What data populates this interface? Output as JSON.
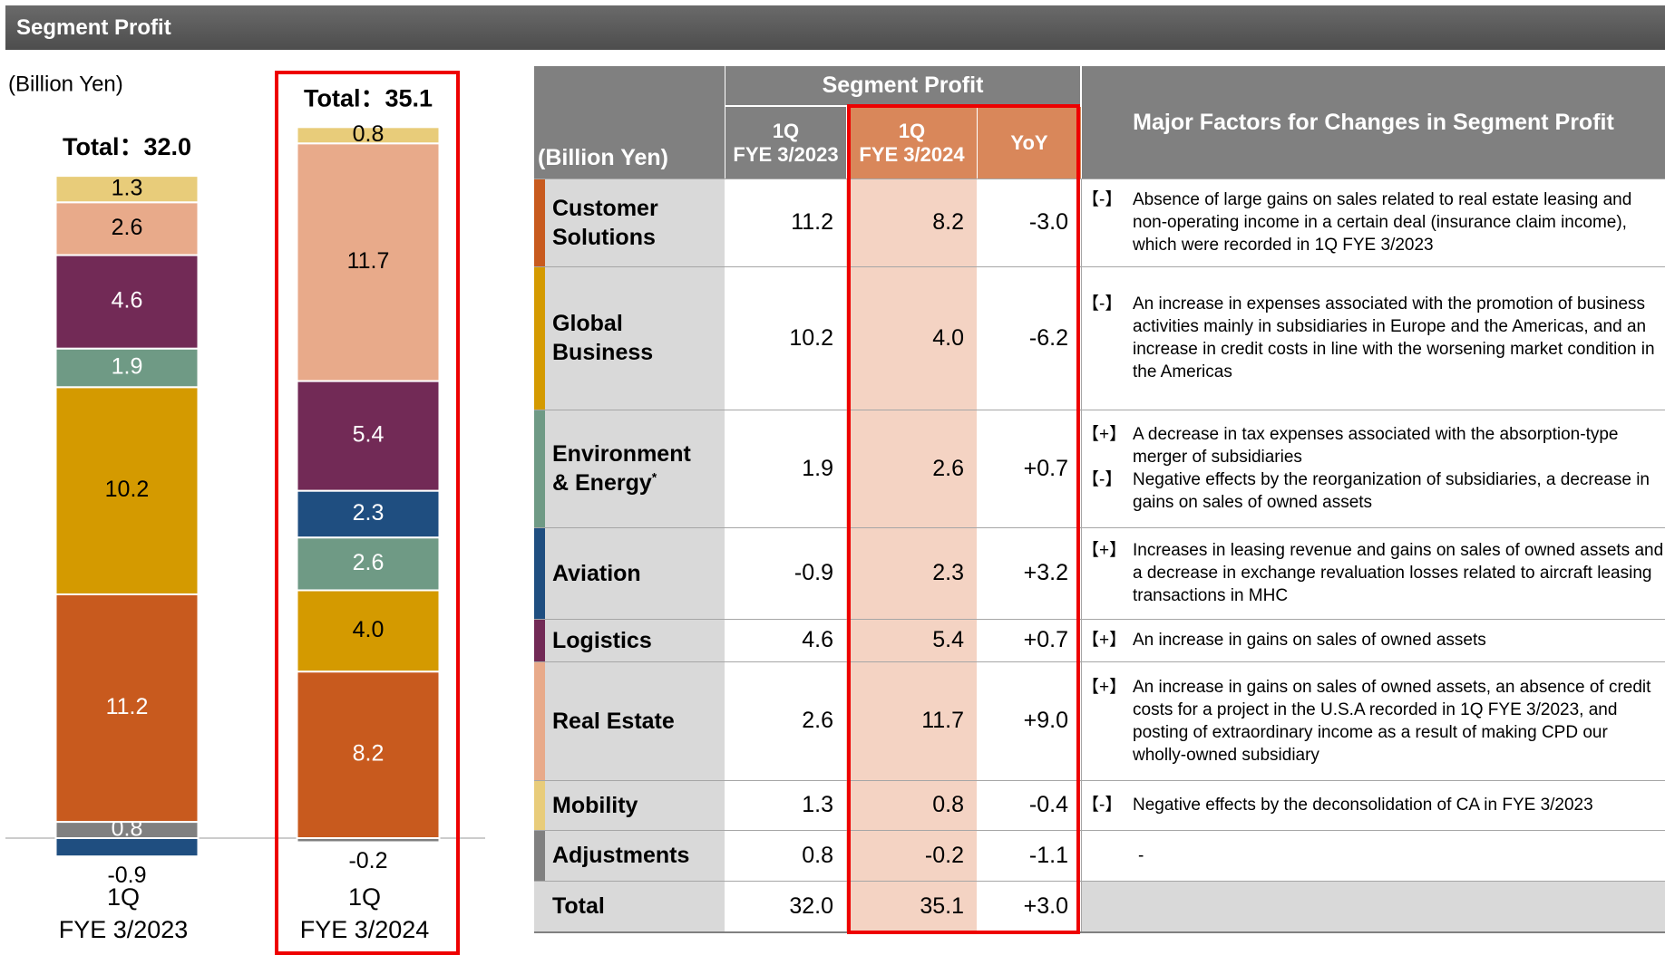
{
  "header": {
    "title": "Segment Profit"
  },
  "chart_data": {
    "type": "stacked_bar",
    "unit_label": "(Billion Yen)",
    "total_label": "Total：",
    "totals": [
      32.0,
      35.1
    ],
    "totals_labels": [
      "32.0",
      "35.1"
    ],
    "categories": [
      [
        "1Q",
        "FYE 3/2023"
      ],
      [
        "1Q",
        "FYE 3/2024"
      ]
    ],
    "series": [
      {
        "color": "#808080",
        "values": [
          0.8,
          -0.2
        ],
        "value_labels": [
          "0.8",
          "-0.2"
        ]
      },
      {
        "color": "#c85a1e",
        "values": [
          11.2,
          8.2
        ],
        "value_labels": [
          "11.2",
          "8.2"
        ]
      },
      {
        "color": "#d49a00",
        "values": [
          10.2,
          4.0
        ],
        "value_labels": [
          "10.2",
          "4.0"
        ]
      },
      {
        "color": "#6f9a85",
        "values": [
          1.9,
          2.6
        ],
        "value_labels": [
          "1.9",
          "2.6"
        ]
      },
      {
        "color": "#1f4e80",
        "values": [
          -0.9,
          2.3
        ],
        "value_labels": [
          "-0.9",
          "2.3"
        ]
      },
      {
        "color": "#722a56",
        "values": [
          4.6,
          5.4
        ],
        "value_labels": [
          "4.6",
          "5.4"
        ]
      },
      {
        "color": "#e8aa8a",
        "values": [
          2.6,
          11.7
        ],
        "value_labels": [
          "2.6",
          "11.7"
        ]
      },
      {
        "color": "#e8cc7a",
        "values": [
          1.3,
          0.8
        ],
        "value_labels": [
          "1.3",
          "0.8"
        ]
      }
    ]
  },
  "table": {
    "unit_label": "(Billion Yen)",
    "group_header": "Segment Profit",
    "col_headers": [
      [
        "1Q",
        "FYE 3/2023"
      ],
      [
        "1Q",
        "FYE 3/2024"
      ],
      [
        "YoY"
      ]
    ],
    "factors_header": "Major Factors for Changes in Segment Profit",
    "rows": [
      {
        "segment": "Customer Solutions",
        "color": "#c85a1e",
        "prev": "11.2",
        "curr": "8.2",
        "yoy": "-3.0",
        "factors": [
          {
            "sign": "【-】",
            "text": "Absence of large gains on sales related to real estate leasing and non-operating income in a certain deal (insurance claim income), which were recorded in 1Q FYE 3/2023"
          }
        ]
      },
      {
        "segment": "Global Business",
        "color": "#d49a00",
        "prev": "10.2",
        "curr": "4.0",
        "yoy": "-6.2",
        "factors": [
          {
            "sign": "【-】",
            "text": "An increase in expenses associated with the promotion of business activities mainly in subsidiaries in Europe and the Americas, and an increase in credit costs in line with the worsening market condition in the Americas"
          }
        ]
      },
      {
        "segment": "Environment & Energy",
        "note_mark": "*",
        "color": "#6f9a85",
        "prev": "1.9",
        "curr": "2.6",
        "yoy": "+0.7",
        "factors": [
          {
            "sign": "【+】",
            "text": "A decrease in tax expenses associated with the absorption-type merger of subsidiaries"
          },
          {
            "sign": "【-】",
            "text": "Negative effects by the reorganization of subsidiaries, a decrease in gains on sales of owned assets"
          }
        ]
      },
      {
        "segment": "Aviation",
        "color": "#1f4e80",
        "prev": "-0.9",
        "curr": "2.3",
        "yoy": "+3.2",
        "factors": [
          {
            "sign": "【+】",
            "text": "Increases in leasing revenue and gains on sales of owned assets and a decrease in exchange revaluation losses related to aircraft leasing transactions in MHC"
          }
        ]
      },
      {
        "segment": "Logistics",
        "color": "#722a56",
        "prev": "4.6",
        "curr": "5.4",
        "yoy": "+0.7",
        "factors": [
          {
            "sign": "【+】",
            "text": "An increase in gains on sales of owned assets"
          }
        ]
      },
      {
        "segment": "Real Estate",
        "color": "#e8aa8a",
        "prev": "2.6",
        "curr": "11.7",
        "yoy": "+9.0",
        "factors": [
          {
            "sign": "【+】",
            "text": "An increase in gains on sales of owned assets, an absence of credit costs for a project in the U.S.A recorded in 1Q FYE 3/2023, and posting of extraordinary income as a result of making CPD our wholly-owned subsidiary"
          }
        ]
      },
      {
        "segment": "Mobility",
        "color": "#e8cc7a",
        "prev": "1.3",
        "curr": "0.8",
        "yoy": "-0.4",
        "factors": [
          {
            "sign": "【-】",
            "text": "Negative effects by the deconsolidation of CA in FYE 3/2023"
          }
        ]
      },
      {
        "segment": "Adjustments",
        "color": "#808080",
        "prev": "0.8",
        "curr": "-0.2",
        "yoy": "-1.1",
        "factors": [
          {
            "text": "-"
          }
        ]
      },
      {
        "segment": "Total",
        "prev": "32.0",
        "curr": "35.1",
        "yoy": "+3.0",
        "factors": []
      }
    ]
  }
}
